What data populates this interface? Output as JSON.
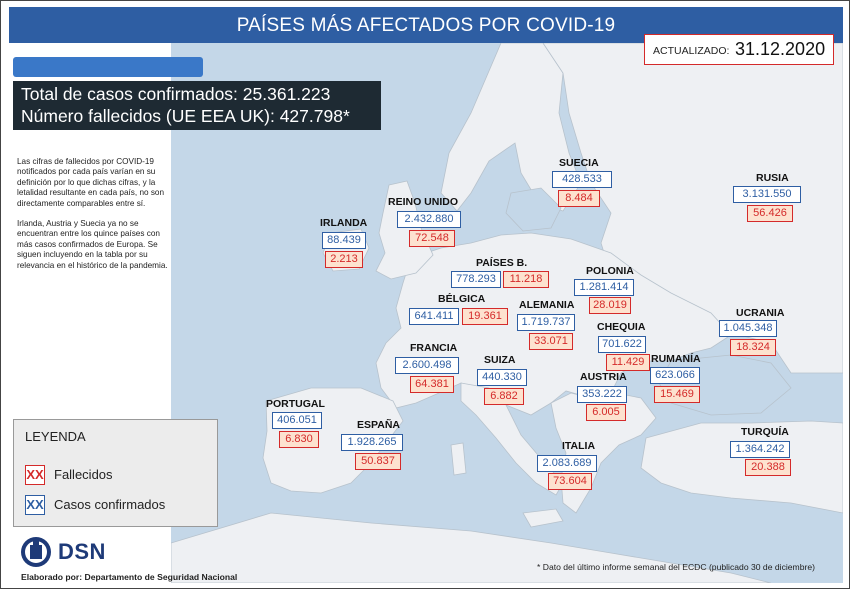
{
  "header": {
    "title": "PAÍSES MÁS AFECTADOS POR COVID-19"
  },
  "updated": {
    "label": "ACTUALIZADO:",
    "date": "31.12.2020"
  },
  "totals": {
    "confirmed": "Total de casos confirmados: 25.361.223",
    "deaths": "Número fallecidos (UE EEA UK): 427.798*"
  },
  "note": {
    "paragraph1": "Las cifras de fallecidos por COVID-19 notificados por cada país varían en su definición por lo que dichas cifras, y la letalidad resultante en cada país, no son directamente comparables entre sí.",
    "paragraph2": "Irlanda, Austria y Suecia ya no se encuentran entre los quince países con más casos confirmados de Europa. Se siguen incluyendo en la tabla por su relevancia en el histórico de la pandemia."
  },
  "legend": {
    "title": "LEYENDA",
    "deaths_symbol": "XX",
    "deaths_label": "Fallecidos",
    "cases_symbol": "XX",
    "cases_label": "Casos confirmados"
  },
  "logo": {
    "text": "DSN"
  },
  "credit": "Elaborado por: Departamento de Seguridad Nacional",
  "footnote": "* Dato del último informe semanal del ECDC (publicado 30 de diciembre)",
  "colors": {
    "header": "#2e5ea3",
    "cases": "#2e5ea3",
    "deaths": "#d42a2a",
    "deaths_fill": "#fde2cf",
    "sea": "#c4d7e8",
    "land": "#eef0f3"
  },
  "countries": {
    "suecia": {
      "name": "SUECIA",
      "cases": "428.533",
      "deaths": "8.484"
    },
    "rusia": {
      "name": "RUSIA",
      "cases": "3.131.550",
      "deaths": "56.426"
    },
    "reino_unido": {
      "name": "REINO UNIDO",
      "cases": "2.432.880",
      "deaths": "72.548"
    },
    "irlanda": {
      "name": "IRLANDA",
      "cases": "88.439",
      "deaths": "2.213"
    },
    "paises_bajos": {
      "name": "PAÍSES B.",
      "cases": "778.293",
      "deaths": "11.218"
    },
    "polonia": {
      "name": "POLONIA",
      "cases": "1.281.414",
      "deaths": "28.019"
    },
    "belgica": {
      "name": "BÉLGICA",
      "cases": "641.411",
      "deaths": "19.361"
    },
    "alemania": {
      "name": "ALEMANIA",
      "cases": "1.719.737",
      "deaths": "33.071"
    },
    "ucrania": {
      "name": "UCRANIA",
      "cases": "1.045.348",
      "deaths": "18.324"
    },
    "chequia": {
      "name": "CHEQUIA",
      "cases": "701.622",
      "deaths": "11.429"
    },
    "francia": {
      "name": "FRANCIA",
      "cases": "2.600.498",
      "deaths": "64.381"
    },
    "suiza": {
      "name": "SUIZA",
      "cases": "440.330",
      "deaths": "6.882"
    },
    "rumania": {
      "name": "RUMANÍA",
      "cases": "623.066",
      "deaths": "15.469"
    },
    "austria": {
      "name": "AUSTRIA",
      "cases": "353.222",
      "deaths": "6.005"
    },
    "portugal": {
      "name": "PORTUGAL",
      "cases": "406.051",
      "deaths": "6.830"
    },
    "espana": {
      "name": "ESPAÑA",
      "cases": "1.928.265",
      "deaths": "50.837"
    },
    "italia": {
      "name": "ITALIA",
      "cases": "2.083.689",
      "deaths": "73.604"
    },
    "turquia": {
      "name": "TURQUÍA",
      "cases": "1.364.242",
      "deaths": "20.388"
    }
  }
}
